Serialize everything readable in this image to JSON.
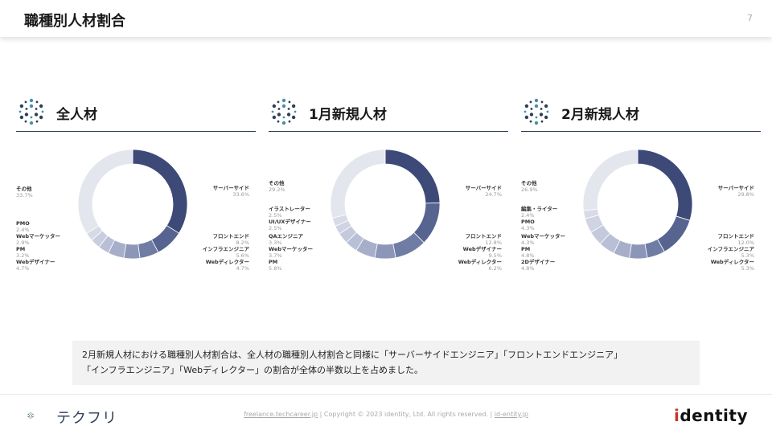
{
  "header": {
    "title": "職種別人材割合",
    "page_number": "7"
  },
  "panels": [
    {
      "title": "全人材",
      "right_labels": [
        {
          "name": "サーバーサイド",
          "pct": "33.6%"
        },
        {
          "name": "フロントエンド",
          "pct": "8.2%"
        },
        {
          "name": "インフラエンジニア",
          "pct": "5.6%"
        },
        {
          "name": "Webディレクター",
          "pct": "4.7%"
        }
      ],
      "left_labels": [
        {
          "name": "その他",
          "pct": "33.7%"
        },
        {
          "name": "PMO",
          "pct": "2.4%"
        },
        {
          "name": "Webマーケッター",
          "pct": "2.9%"
        },
        {
          "name": "PM",
          "pct": "3.2%"
        },
        {
          "name": "Webデザイナー",
          "pct": "4.7%"
        }
      ]
    },
    {
      "title": "1月新規人材",
      "right_labels": [
        {
          "name": "サーバーサイド",
          "pct": "24.7%"
        },
        {
          "name": "フロントエンド",
          "pct": "12.8%"
        },
        {
          "name": "Webデザイナー",
          "pct": "9.5%"
        },
        {
          "name": "Webディレクター",
          "pct": "6.2%"
        }
      ],
      "left_labels": [
        {
          "name": "その他",
          "pct": "29.2%"
        },
        {
          "name": "イラストレーター",
          "pct": "2.5%"
        },
        {
          "name": "UI/UXデザイナー",
          "pct": "2.5%"
        },
        {
          "name": "QAエンジニア",
          "pct": "3.3%"
        },
        {
          "name": "Webマーケッター",
          "pct": "3.7%"
        },
        {
          "name": "PM",
          "pct": "5.8%"
        }
      ]
    },
    {
      "title": "2月新規人材",
      "right_labels": [
        {
          "name": "サーバーサイド",
          "pct": "29.8%"
        },
        {
          "name": "フロントエンド",
          "pct": "12.0%"
        },
        {
          "name": "インフラエンジニア",
          "pct": "5.3%"
        },
        {
          "name": "Webディレクター",
          "pct": "5.3%"
        }
      ],
      "left_labels": [
        {
          "name": "その他",
          "pct": "26.9%"
        },
        {
          "name": "編集・ライター",
          "pct": "2.4%"
        },
        {
          "name": "PMO",
          "pct": "4.3%"
        },
        {
          "name": "Webマーケッター",
          "pct": "4.3%"
        },
        {
          "name": "PM",
          "pct": "4.8%"
        },
        {
          "name": "2Dデザイナー",
          "pct": "4.8%"
        }
      ]
    }
  ],
  "chart_data": [
    {
      "type": "pie",
      "title": "全人材",
      "categories": [
        "サーバーサイド",
        "フロントエンド",
        "インフラエンジニア",
        "Webディレクター",
        "Webデザイナー",
        "PM",
        "Webマーケッター",
        "PMO",
        "その他"
      ],
      "values": [
        33.6,
        8.2,
        5.6,
        4.7,
        4.7,
        3.2,
        2.9,
        2.4,
        33.7
      ],
      "colors": [
        "#3d4a78",
        "#56648f",
        "#6f7ca3",
        "#8c96b8",
        "#a6aec9",
        "#b9c0d5",
        "#c9cedf",
        "#d6dae6",
        "#e4e6ee"
      ]
    },
    {
      "type": "pie",
      "title": "1月新規人材",
      "categories": [
        "サーバーサイド",
        "フロントエンド",
        "Webデザイナー",
        "Webディレクター",
        "PM",
        "Webマーケッター",
        "QAエンジニア",
        "UI/UXデザイナー",
        "イラストレーター",
        "その他"
      ],
      "values": [
        24.7,
        12.8,
        9.5,
        6.2,
        5.8,
        3.7,
        3.3,
        2.5,
        2.5,
        29.2
      ],
      "colors": [
        "#3d4a78",
        "#56648f",
        "#6f7ca3",
        "#8c96b8",
        "#a6aec9",
        "#b9c0d5",
        "#c4cadb",
        "#cfd3e2",
        "#d8dbe7",
        "#e4e6ee"
      ]
    },
    {
      "type": "pie",
      "title": "2月新規人材",
      "categories": [
        "サーバーサイド",
        "フロントエンド",
        "インフラエンジニア",
        "Webディレクター",
        "2Dデザイナー",
        "PM",
        "Webマーケッター",
        "PMO",
        "編集・ライター",
        "その他"
      ],
      "values": [
        29.8,
        12.0,
        5.3,
        5.3,
        4.8,
        4.8,
        4.3,
        4.3,
        2.4,
        26.9
      ],
      "colors": [
        "#3d4a78",
        "#56648f",
        "#6f7ca3",
        "#8c96b8",
        "#a6aec9",
        "#b9c0d5",
        "#c4cadb",
        "#cfd3e2",
        "#d8dbe7",
        "#e4e6ee"
      ]
    }
  ],
  "note": {
    "line1": "2月新規人材における職種別人材割合は、全人材の職種別人材割合と同様に「サーバーサイドエンジニア」「フロントエンドエンジニア」",
    "line2": "「インフラエンジニア」「Webディレクター」の割合が全体の半数以上を占めました。"
  },
  "footer": {
    "logo_text": "テクフリ",
    "link1": "freelance.techcareer.jp",
    "copyright": "Copyright © 2023 identity, Ltd. All rights reserved.",
    "link2": "id-entity.jp",
    "brand_i": "i",
    "brand_rest": "dentity"
  }
}
